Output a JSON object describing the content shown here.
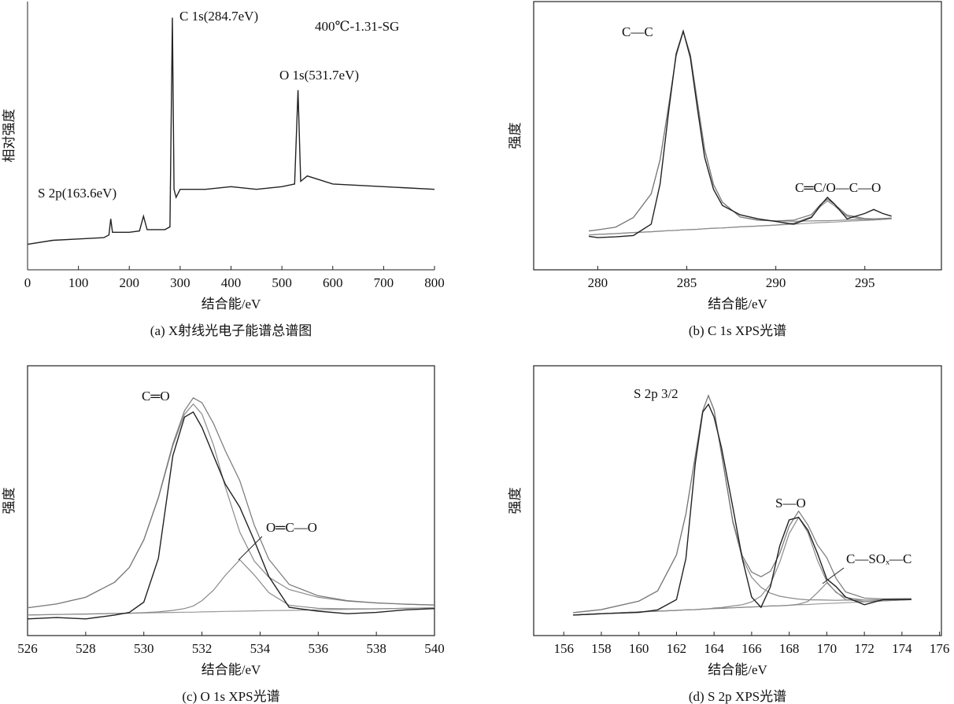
{
  "chart_data": [
    {
      "type": "line",
      "caption": "(a) X射线光电子能谱总谱图",
      "x_label": "结合能/eV",
      "y_label": "相对强度",
      "annotations": [
        "C 1s(284.7eV)",
        "400℃-1.31-SG",
        "O 1s(531.7eV)",
        "S 2p(163.6eV)"
      ],
      "xlim": [
        0,
        800
      ],
      "xticks": [
        0,
        100,
        200,
        300,
        400,
        500,
        600,
        700,
        800
      ],
      "ylim": [
        0,
        100
      ],
      "x": [
        0,
        50,
        100,
        150,
        160,
        163.6,
        167,
        200,
        220,
        228,
        235,
        270,
        280,
        284.7,
        288,
        292,
        300,
        350,
        400,
        450,
        500,
        525,
        531.7,
        537,
        550,
        600,
        700,
        800
      ],
      "series": [
        {
          "color": "#222222",
          "values": [
            9.5,
            11,
            11.5,
            12,
            13,
            19,
            14,
            14,
            14.5,
            20,
            15,
            15,
            16,
            94,
            30,
            27,
            30,
            30,
            31,
            30,
            31,
            32,
            67,
            33,
            35,
            32,
            31,
            30
          ]
        }
      ]
    },
    {
      "type": "line",
      "caption": "(b) C 1s XPS光谱",
      "x_label": "结合能/eV",
      "y_label": "强度",
      "annotations": [
        "C—C",
        "C═C/O—C—O"
      ],
      "xlim": [
        276.4,
        299.3
      ],
      "xticks": [
        280,
        285,
        290,
        295
      ],
      "ylim": [
        0,
        100
      ],
      "x": [
        279.5,
        280,
        281,
        282,
        283,
        283.5,
        284,
        284.4,
        284.8,
        285.2,
        285.6,
        286,
        286.5,
        287,
        288,
        289,
        290,
        291,
        292,
        292.5,
        292.9,
        293.3,
        294,
        295,
        295.5,
        296,
        296.5
      ],
      "series": [
        {
          "color": "#9a9a9a",
          "values": [
            13.0,
            13.2,
            13.5,
            13.9,
            14.2,
            14.4,
            14.6,
            14.7,
            14.9,
            15.0,
            15.1,
            15.3,
            15.5,
            15.6,
            16.0,
            16.3,
            16.7,
            17.0,
            17.4,
            17.6,
            17.7,
            17.8,
            18.1,
            18.4,
            18.6,
            18.8,
            19.0
          ]
        },
        {
          "color": "#8a8a8a",
          "values": [
            14.5,
            14.9,
            15.9,
            19.5,
            28.3,
            41.0,
            62.0,
            79.8,
            88.9,
            80.1,
            62.5,
            44.9,
            31.8,
            25.2,
            19.7,
            18.5,
            18.2,
            18.1,
            18.2,
            18.3,
            18.3,
            18.4,
            18.6,
            18.8,
            19.0,
            19.1,
            19.3
          ]
        },
        {
          "color": "#8a8a8a",
          "values": [
            13.0,
            13.2,
            13.5,
            13.9,
            14.2,
            14.4,
            14.6,
            14.7,
            14.9,
            15.0,
            15.1,
            15.3,
            15.5,
            15.6,
            16.0,
            16.3,
            16.7,
            17.4,
            19.8,
            23.6,
            25.7,
            23.8,
            19.9,
            18.7,
            18.6,
            18.8,
            19.0
          ]
        },
        {
          "color": "#777777",
          "values": [
            14.5,
            14.9,
            15.9,
            19.5,
            28.3,
            41.0,
            62.0,
            79.8,
            88.9,
            80.1,
            62.5,
            44.9,
            31.8,
            25.2,
            19.7,
            18.5,
            18.2,
            18.5,
            20.6,
            24.3,
            26.3,
            24.4,
            20.4,
            19.1,
            19.0,
            19.1,
            19.3
          ]
        },
        {
          "color": "#222222",
          "values": [
            12.5,
            12.0,
            12.3,
            12.8,
            17.0,
            32.0,
            60.0,
            80.5,
            89.0,
            79.0,
            60.0,
            42.0,
            30.0,
            24.0,
            20.5,
            19.0,
            18.0,
            17.0,
            19.5,
            24.0,
            27.0,
            24.5,
            19.0,
            21.0,
            22.5,
            21.0,
            20.0
          ]
        }
      ]
    },
    {
      "type": "line",
      "caption": "(c) O 1s XPS光谱",
      "x_label": "结合能/eV",
      "y_label": "强度",
      "annotations": [
        "C═O",
        "O═C—O"
      ],
      "xlim": [
        526,
        540
      ],
      "xticks": [
        526,
        528,
        530,
        532,
        534,
        536,
        538,
        540
      ],
      "ylim": [
        -5,
        100
      ],
      "x": [
        526,
        527,
        528,
        529,
        529.5,
        530,
        530.5,
        531,
        531.4,
        531.7,
        532,
        532.4,
        532.8,
        533.3,
        533.8,
        534.3,
        535,
        536,
        537,
        538,
        539,
        540
      ],
      "series": [
        {
          "color": "#9a9a9a",
          "values": [
            3.0,
            3.2,
            3.4,
            3.6,
            3.7,
            3.8,
            3.9,
            4.0,
            4.1,
            4.1,
            4.2,
            4.3,
            4.4,
            4.5,
            4.6,
            4.7,
            4.8,
            5.0,
            5.2,
            5.4,
            5.6,
            5.8
          ]
        },
        {
          "color": "#8a8a8a",
          "values": [
            5.8,
            7.3,
            9.9,
            15.8,
            21.5,
            32.2,
            48.5,
            68.8,
            81.1,
            85.1,
            81.2,
            69.1,
            53.0,
            35.3,
            24.0,
            17.7,
            12.9,
            9.9,
            8.4,
            7.7,
            7.2,
            6.9
          ]
        },
        {
          "color": "#8a8a8a",
          "values": [
            3.0,
            3.2,
            3.4,
            3.6,
            3.7,
            3.9,
            4.2,
            4.8,
            5.5,
            6.5,
            8.6,
            12.7,
            18.4,
            24.5,
            18.6,
            11.7,
            6.8,
            5.6,
            5.4,
            5.4,
            5.6,
            5.8
          ]
        },
        {
          "color": "#777777",
          "values": [
            5.8,
            7.3,
            9.9,
            15.8,
            21.5,
            32.3,
            48.8,
            69.6,
            82.5,
            87.5,
            85.6,
            77.5,
            67.0,
            55.3,
            38.0,
            24.7,
            14.9,
            10.5,
            8.6,
            7.7,
            7.2,
            6.9
          ]
        },
        {
          "color": "#222222",
          "values": [
            1.5,
            2.0,
            1.5,
            3.0,
            4.0,
            8.0,
            25.0,
            65.0,
            80.0,
            82.0,
            76.0,
            65.0,
            54.0,
            45.0,
            32.0,
            18.0,
            6.0,
            4.5,
            3.5,
            4.0,
            5.0,
            5.5
          ]
        }
      ]
    },
    {
      "type": "line",
      "caption": "(d) S 2p XPS光谱",
      "x_label": "结合能/eV",
      "y_label": "强度",
      "annotations": [
        "S 2p 3/2",
        "S—O",
        "C—SOₓ—C"
      ],
      "xlim": [
        154.4,
        176.1
      ],
      "xticks": [
        156,
        158,
        160,
        162,
        164,
        166,
        168,
        170,
        172,
        174,
        176
      ],
      "ylim": [
        -5,
        100
      ],
      "x": [
        156.5,
        158,
        160,
        161,
        162,
        162.5,
        163,
        163.4,
        163.7,
        164,
        164.4,
        165,
        165.5,
        166,
        166.5,
        167,
        167.5,
        168,
        168.5,
        169,
        169.5,
        170,
        170.5,
        171,
        172,
        173,
        174.5
      ],
      "series": [
        {
          "color": "#9a9a9a",
          "values": [
            3.0,
            3.5,
            4.2,
            4.5,
            4.8,
            5.0,
            5.1,
            5.3,
            5.4,
            5.5,
            5.6,
            5.8,
            6.0,
            6.1,
            6.3,
            6.5,
            6.6,
            6.8,
            7.0,
            7.1,
            7.3,
            7.5,
            7.6,
            7.8,
            8.1,
            8.5,
            9.0
          ]
        },
        {
          "color": "#8a8a8a",
          "values": [
            3.9,
            5.1,
            8.4,
            12.4,
            26.4,
            42.4,
            64.9,
            82.5,
            88.4,
            82.7,
            65.4,
            39.0,
            25.1,
            17.7,
            13.8,
            11.5,
            10.3,
            9.7,
            9.2,
            8.9,
            8.9,
            8.8,
            8.7,
            8.8,
            8.8,
            9.0,
            9.3
          ]
        },
        {
          "color": "#8a8a8a",
          "values": [
            3.0,
            3.5,
            4.2,
            4.5,
            4.8,
            5.0,
            5.1,
            5.3,
            5.4,
            5.7,
            5.9,
            6.5,
            7.0,
            8.1,
            10.4,
            15.0,
            23.6,
            34.7,
            41.0,
            35.0,
            24.3,
            16.0,
            11.7,
            9.8,
            8.8,
            8.8,
            9.1
          ]
        },
        {
          "color": "#8a8a8a",
          "values": [
            3.0,
            3.5,
            4.2,
            4.5,
            4.8,
            5.0,
            5.1,
            5.3,
            5.4,
            5.5,
            5.6,
            5.8,
            6.0,
            6.1,
            6.3,
            6.5,
            6.6,
            6.8,
            7.2,
            8.3,
            11.7,
            15.5,
            12.0,
            9.0,
            8.2,
            8.5,
            9.0
          ]
        },
        {
          "color": "#777777",
          "values": [
            3.9,
            5.1,
            8.4,
            12.4,
            26.4,
            42.4,
            64.9,
            82.5,
            88.4,
            82.9,
            65.7,
            39.7,
            26.1,
            19.7,
            17.9,
            20.0,
            27.0,
            37.6,
            43.4,
            38.0,
            30.3,
            25.3,
            17.2,
            12.0,
            9.6,
            9.3,
            9.4
          ]
        },
        {
          "color": "#222222",
          "values": [
            3.0,
            3.5,
            4.0,
            5.0,
            9.0,
            25.0,
            62.0,
            82.0,
            85.0,
            80.0,
            68.0,
            45.0,
            25.0,
            10.0,
            6.0,
            14.0,
            30.0,
            40.0,
            41.0,
            36.0,
            27.0,
            17.0,
            14.0,
            10.0,
            7.0,
            9.0,
            9.0
          ]
        }
      ]
    }
  ]
}
